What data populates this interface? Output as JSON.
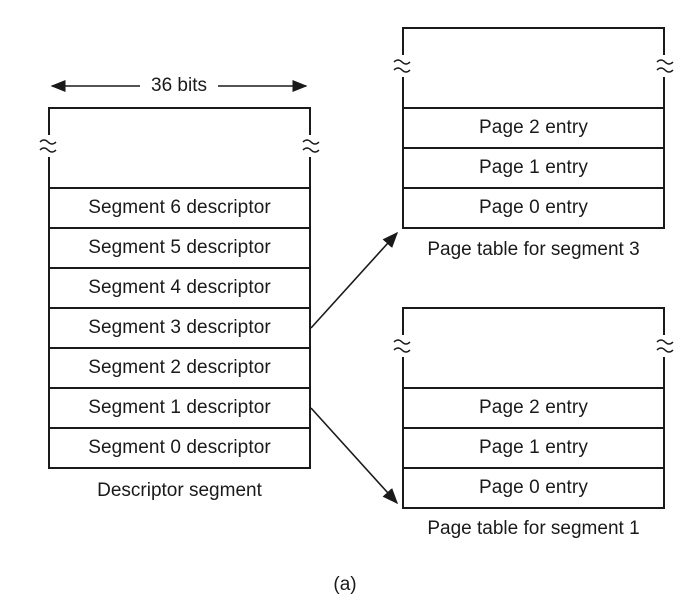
{
  "width_label": "36 bits",
  "descriptor_segment": {
    "caption": "Descriptor segment",
    "entries": [
      "Segment 6 descriptor",
      "Segment 5 descriptor",
      "Segment 4 descriptor",
      "Segment 3 descriptor",
      "Segment 2 descriptor",
      "Segment 1 descriptor",
      "Segment 0 descriptor"
    ]
  },
  "page_table_3": {
    "caption": "Page table for segment 3",
    "entries": [
      "Page 2 entry",
      "Page 1 entry",
      "Page 0 entry"
    ]
  },
  "page_table_1": {
    "caption": "Page table for segment 1",
    "entries": [
      "Page 2 entry",
      "Page 1 entry",
      "Page 0 entry"
    ]
  },
  "figure_label": "(a)",
  "colors": {
    "ink": "#1a1a1a",
    "background": "#ffffff"
  }
}
